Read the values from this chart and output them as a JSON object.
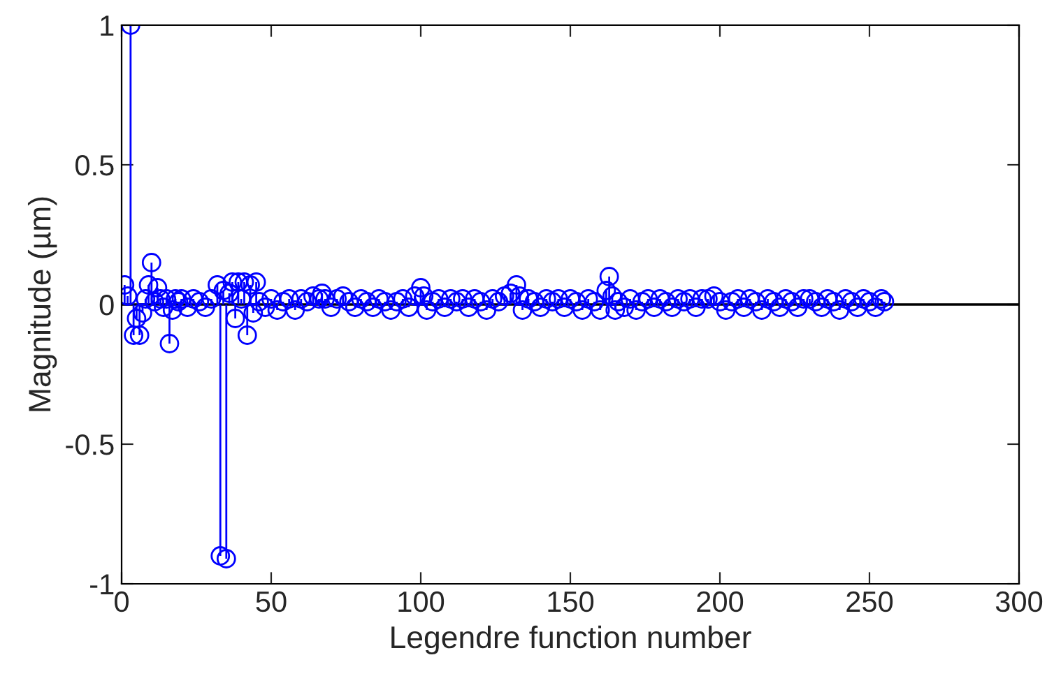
{
  "chart_data": {
    "type": "lollipop",
    "xlabel": "Legendre function number",
    "ylabel": "Magnitude (µm)",
    "xlim": [
      0,
      300
    ],
    "xticks": [
      0,
      50,
      100,
      150,
      200,
      250,
      300
    ],
    "ylim": [
      -1,
      1
    ],
    "yticks": [
      -1,
      -0.5,
      0,
      0.5,
      1
    ],
    "grid": false,
    "marker": "circle",
    "ref_lines": [
      {
        "axis": "y",
        "value": 0,
        "color": "#000000"
      }
    ],
    "series": [
      {
        "color": "#0000ff",
        "x": [
          1,
          2,
          3,
          4,
          5,
          6,
          7,
          8,
          9,
          10,
          11,
          12,
          13,
          14,
          15,
          16,
          17,
          18,
          19,
          20,
          22,
          24,
          26,
          28,
          30,
          32,
          33,
          34,
          35,
          36,
          37,
          38,
          39,
          40,
          41,
          42,
          43,
          44,
          45,
          46,
          48,
          50,
          52,
          54,
          56,
          58,
          60,
          62,
          64,
          66,
          67,
          68,
          70,
          72,
          74,
          76,
          78,
          80,
          82,
          84,
          86,
          88,
          90,
          92,
          94,
          96,
          98,
          100,
          101,
          102,
          104,
          106,
          108,
          110,
          112,
          114,
          116,
          118,
          120,
          122,
          124,
          126,
          128,
          130,
          132,
          133,
          134,
          136,
          138,
          140,
          142,
          144,
          146,
          148,
          150,
          152,
          154,
          156,
          158,
          160,
          162,
          163,
          164,
          165,
          166,
          168,
          170,
          172,
          174,
          176,
          178,
          180,
          182,
          184,
          186,
          188,
          190,
          192,
          194,
          196,
          198,
          200,
          202,
          204,
          206,
          208,
          210,
          212,
          214,
          216,
          218,
          220,
          222,
          224,
          226,
          228,
          230,
          232,
          234,
          236,
          238,
          240,
          242,
          244,
          246,
          248,
          250,
          252,
          254,
          255
        ],
        "values": [
          0.07,
          0.03,
          1.0,
          -0.11,
          -0.05,
          -0.11,
          -0.03,
          0.02,
          0.07,
          0.15,
          0.01,
          0.06,
          0.02,
          -0.01,
          0.02,
          -0.14,
          -0.02,
          0.02,
          0.01,
          0.02,
          -0.01,
          0.02,
          0.01,
          -0.01,
          0.02,
          0.07,
          -0.9,
          0.05,
          -0.91,
          0.04,
          0.08,
          -0.05,
          0.08,
          0.02,
          0.08,
          -0.11,
          0.07,
          -0.03,
          0.08,
          0.01,
          -0.01,
          0.02,
          -0.02,
          0.01,
          0.02,
          -0.02,
          0.02,
          0.01,
          0.03,
          0.02,
          0.04,
          0.02,
          -0.01,
          0.02,
          0.03,
          0.01,
          -0.01,
          0.02,
          0.01,
          -0.01,
          0.02,
          0.01,
          -0.02,
          0.01,
          0.02,
          -0.01,
          0.03,
          0.06,
          0.03,
          -0.02,
          0.01,
          0.02,
          -0.01,
          0.02,
          0.01,
          0.02,
          -0.01,
          0.02,
          0.01,
          -0.02,
          0.02,
          0.01,
          0.03,
          0.04,
          0.07,
          0.03,
          -0.02,
          0.02,
          0.01,
          -0.01,
          0.02,
          0.01,
          0.02,
          -0.01,
          0.02,
          0.01,
          -0.02,
          0.02,
          0.01,
          -0.02,
          0.05,
          0.1,
          0.03,
          -0.02,
          0.01,
          -0.01,
          0.02,
          -0.02,
          0.01,
          0.02,
          -0.01,
          0.02,
          0.01,
          -0.01,
          0.02,
          0.01,
          0.02,
          -0.01,
          0.02,
          0.02,
          0.03,
          0.01,
          -0.02,
          0.01,
          0.02,
          -0.01,
          0.02,
          0.01,
          -0.02,
          0.02,
          0.01,
          -0.01,
          0.02,
          0.01,
          -0.01,
          0.02,
          0.02,
          0.01,
          -0.01,
          0.02,
          0.01,
          -0.02,
          0.02,
          0.01,
          -0.01,
          0.02,
          0.01,
          -0.01,
          0.02,
          0.01
        ]
      }
    ]
  }
}
